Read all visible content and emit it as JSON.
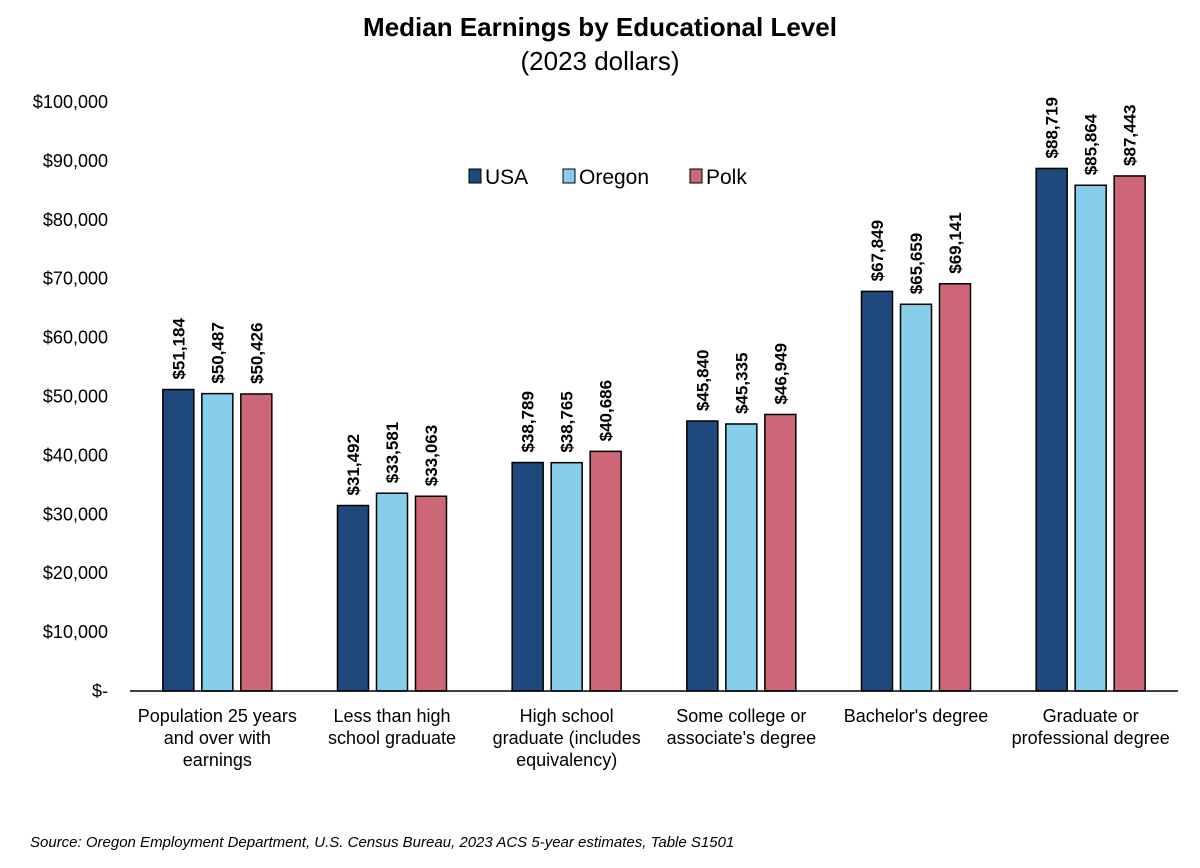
{
  "chart_data": {
    "type": "bar",
    "title": "Median Earnings by Educational Level",
    "subtitle": "(2023 dollars)",
    "categories": [
      [
        "Population 25 years",
        "and over with",
        "earnings"
      ],
      [
        "Less than high",
        "school graduate"
      ],
      [
        "High school",
        "graduate (includes",
        "equivalency)"
      ],
      [
        "Some college or",
        "associate's degree"
      ],
      [
        "Bachelor's degree"
      ],
      [
        "Graduate or",
        "professional degree"
      ]
    ],
    "series": [
      {
        "name": "USA",
        "color": "#1f497d",
        "values": [
          51184,
          31492,
          38789,
          45840,
          67849,
          88719
        ],
        "labels": [
          "$51,184",
          "$31,492",
          "$38,789",
          "$45,840",
          "$67,849",
          "$88,719"
        ]
      },
      {
        "name": "Oregon",
        "color": "#87ceeb",
        "values": [
          50487,
          33581,
          38765,
          45335,
          65659,
          85864
        ],
        "labels": [
          "$50,487",
          "$33,581",
          "$38,765",
          "$45,335",
          "$65,659",
          "$85,864"
        ]
      },
      {
        "name": "Polk",
        "color": "#cd6677",
        "values": [
          50426,
          33063,
          40686,
          46949,
          69141,
          87443
        ],
        "labels": [
          "$50,426",
          "$33,063",
          "$40,686",
          "$46,949",
          "$69,141",
          "$87,443"
        ]
      }
    ],
    "ylim": [
      0,
      100000
    ],
    "yticks": [
      0,
      10000,
      20000,
      30000,
      40000,
      50000,
      60000,
      70000,
      80000,
      90000,
      100000
    ],
    "ytick_labels": [
      "$-",
      "$10,000",
      "$20,000",
      "$30,000",
      "$40,000",
      "$50,000",
      "$60,000",
      "$70,000",
      "$80,000",
      "$90,000",
      "$100,000"
    ],
    "xlabel": "",
    "ylabel": "",
    "grid": false,
    "legend_position": "top-center"
  },
  "source": "Source: Oregon Employment Department, U.S. Census Bureau, 2023 ACS 5-year estimates, Table S1501"
}
